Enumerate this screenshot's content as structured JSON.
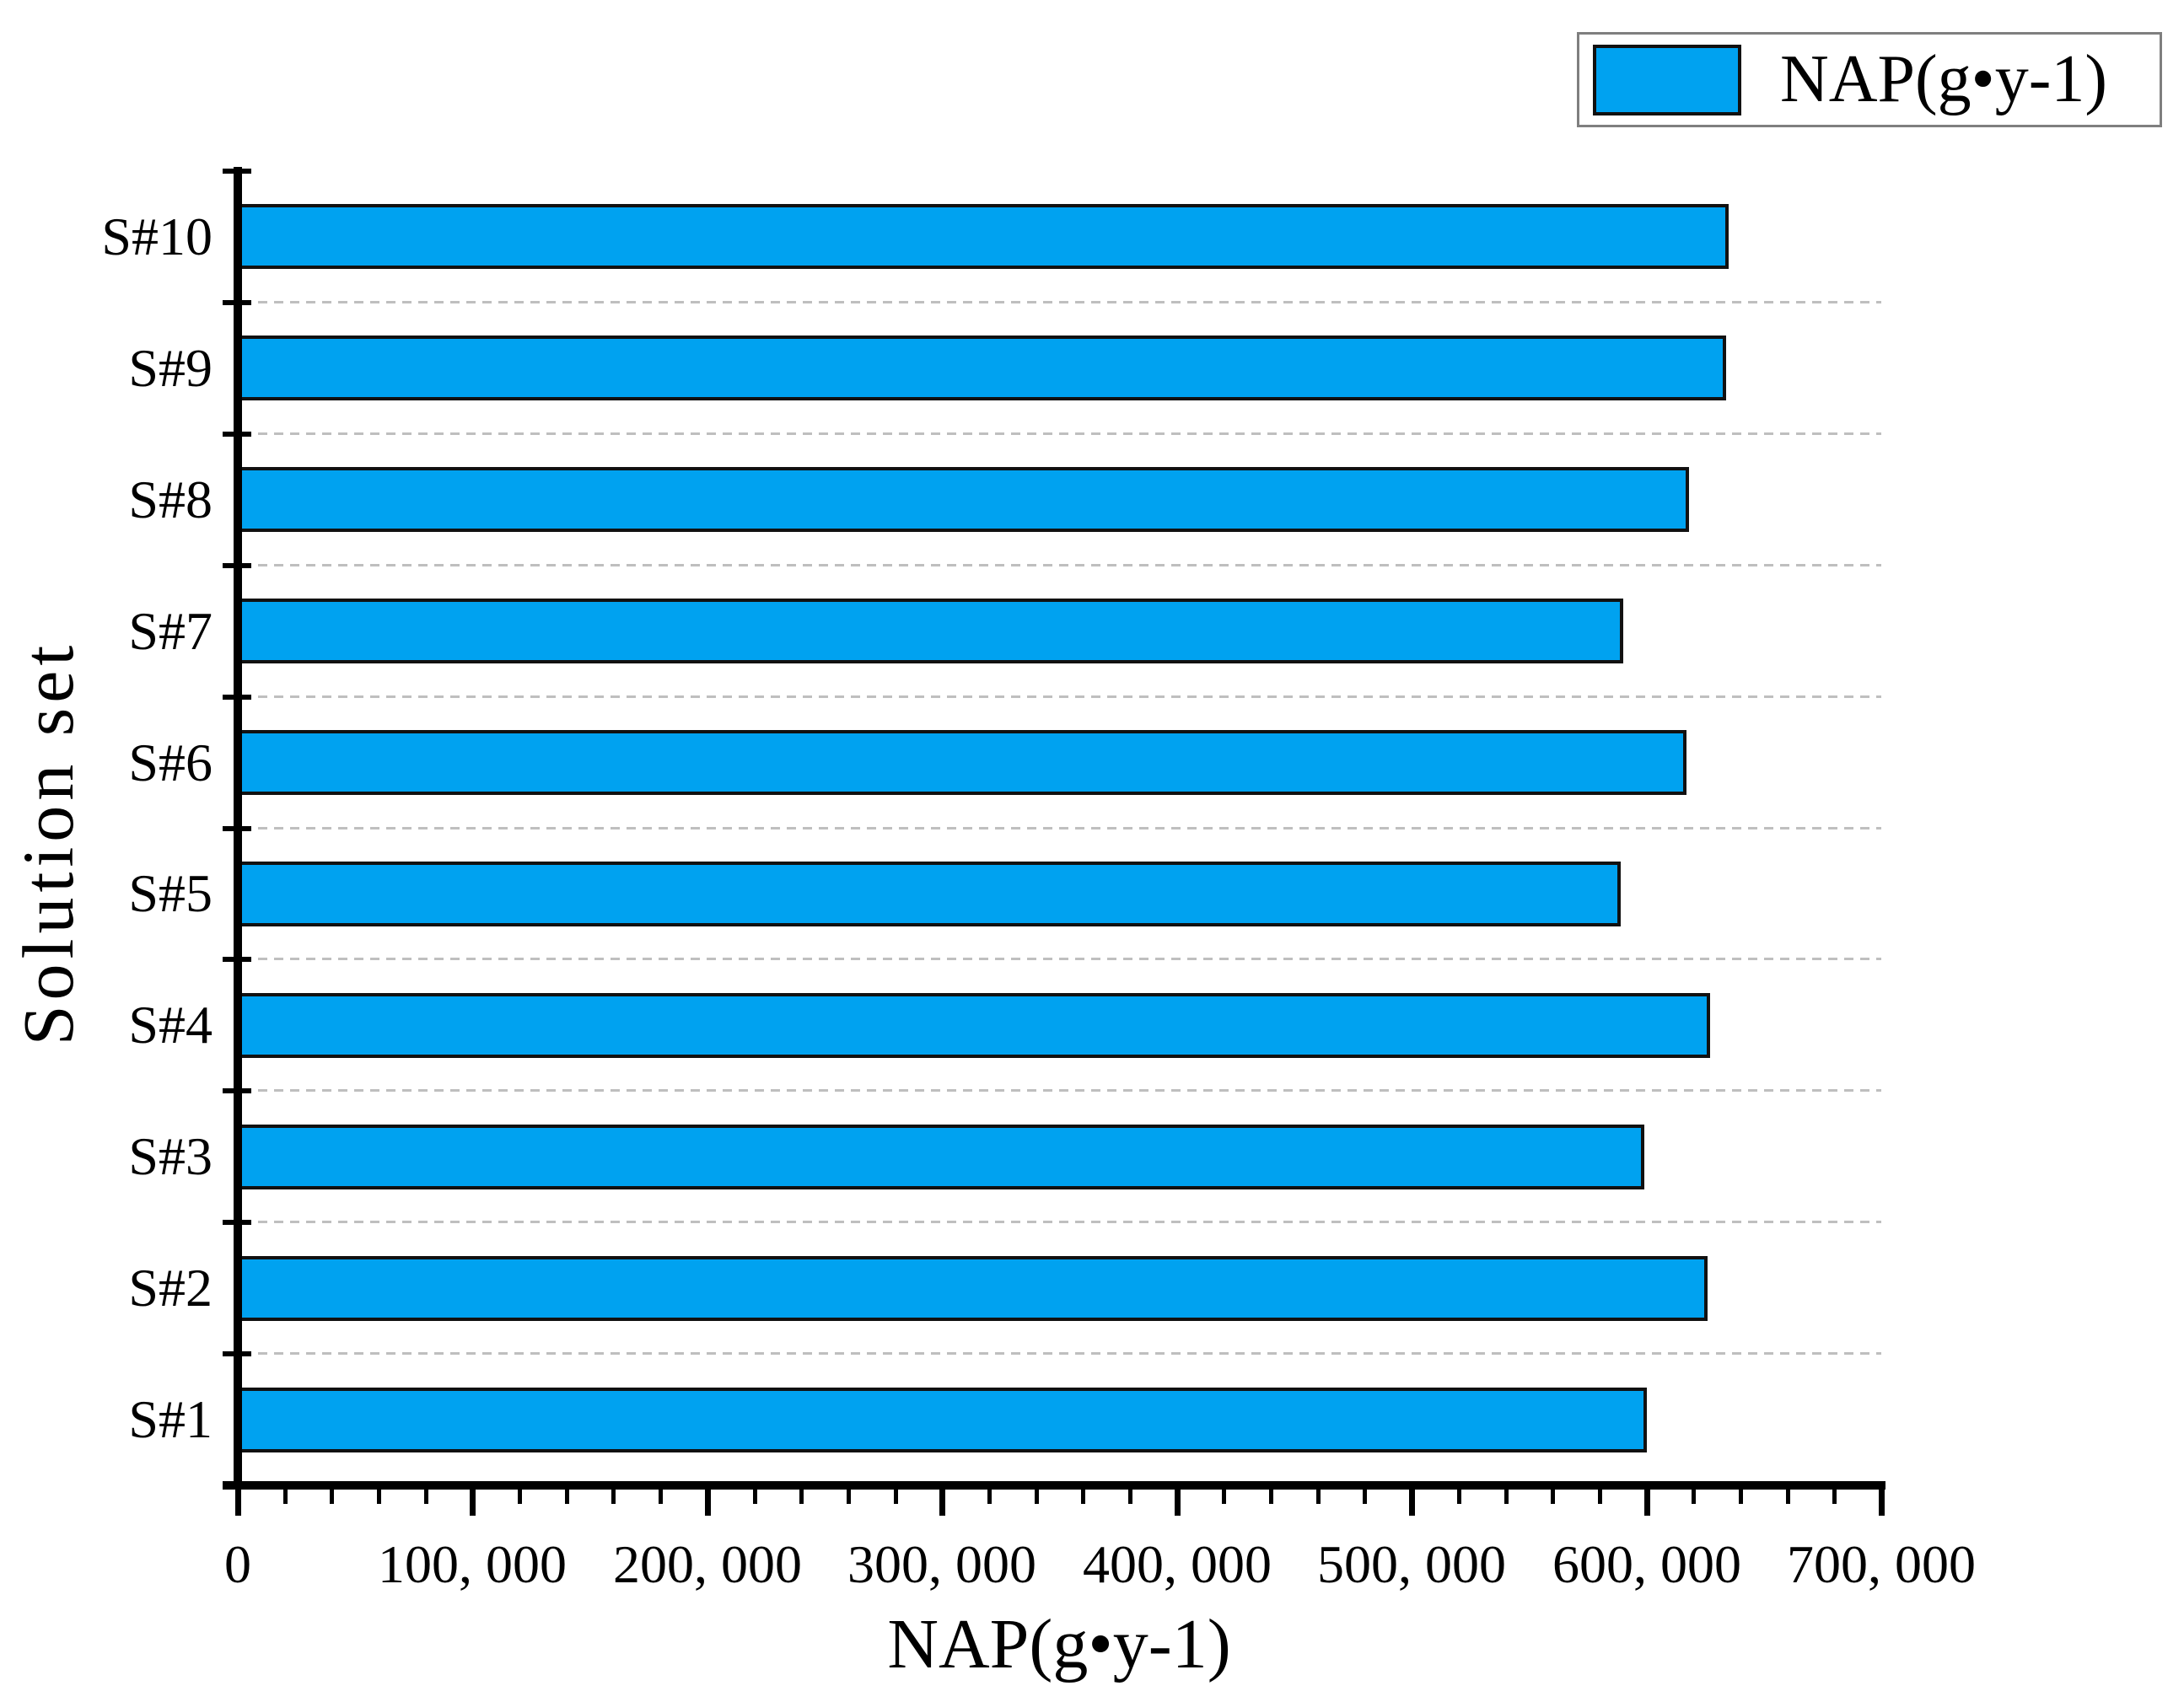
{
  "page": {
    "background": "#ffffff"
  },
  "legend": {
    "label": "NAP(g•y-1)",
    "swatch_color": "#00A2F0",
    "border_color": "#7f7f7f",
    "position": "top-right"
  },
  "axes": {
    "x_title": "NAP(g•y-1)",
    "y_title": "Solution set",
    "x_tick_labels": [
      "0",
      "100, 000",
      "200, 000",
      "300, 000",
      "400, 000",
      "500, 000",
      "600, 000",
      "700, 000"
    ],
    "x_min": 0,
    "x_max": 700000,
    "x_major_step": 100000,
    "x_minor_step": 20000,
    "axis_color": "#000000",
    "grid_color": "#bfbfbf"
  },
  "chart_data": {
    "type": "bar",
    "orientation": "horizontal",
    "title": "",
    "xlabel": "NAP(g•y-1)",
    "ylabel": "Solution set",
    "categories": [
      "S#1",
      "S#2",
      "S#3",
      "S#4",
      "S#5",
      "S#6",
      "S#7",
      "S#8",
      "S#9",
      "S#10"
    ],
    "values": [
      600000,
      626000,
      599000,
      627000,
      589000,
      617000,
      590000,
      618000,
      634000,
      635000
    ],
    "series": [
      {
        "name": "NAP(g•y-1)",
        "values": [
          600000,
          626000,
          599000,
          627000,
          589000,
          617000,
          590000,
          618000,
          634000,
          635000
        ]
      }
    ],
    "xlim": [
      0,
      700000
    ],
    "category_order_top_to_bottom": [
      "S#10",
      "S#9",
      "S#8",
      "S#7",
      "S#6",
      "S#5",
      "S#4",
      "S#3",
      "S#2",
      "S#1"
    ],
    "bar_color": "#00A2F0",
    "bar_border_color": "#111111",
    "grid": "dashed horizontal separators at category boundaries",
    "legend_position": "top-right"
  }
}
